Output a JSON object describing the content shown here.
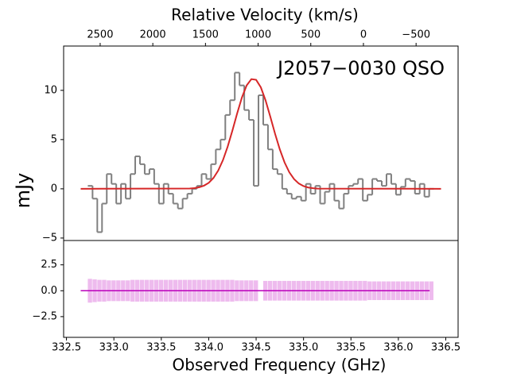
{
  "chart_data": [
    {
      "type": "step",
      "annotation": "J2057−0030 QSO",
      "ylabel": "mJy",
      "x2label": "Relative Velocity (km/s)",
      "xlim": [
        332.47,
        336.63
      ],
      "ylim": [
        -5.25,
        14.5
      ],
      "yticks": [
        {
          "value": -5,
          "label": "−5"
        },
        0,
        5,
        10
      ],
      "x2lim": [
        2847,
        -899
      ],
      "x2ticks": [
        2500,
        2000,
        1500,
        1000,
        500,
        0,
        {
          "value": -500,
          "label": "−500"
        }
      ],
      "series": [
        {
          "name": "spectrum",
          "color": "#808080",
          "x": [
            332.75,
            332.8,
            332.85,
            332.9,
            332.95,
            333.0,
            333.05,
            333.1,
            333.15,
            333.2,
            333.25,
            333.3,
            333.35,
            333.4,
            333.45,
            333.5,
            333.55,
            333.6,
            333.65,
            333.7,
            333.75,
            333.8,
            333.85,
            333.9,
            333.95,
            334.0,
            334.05,
            334.1,
            334.15,
            334.2,
            334.25,
            334.3,
            334.35,
            334.4,
            334.45,
            334.5,
            334.55,
            334.6,
            334.65,
            334.7,
            334.75,
            334.8,
            334.85,
            334.9,
            334.95,
            335.0,
            335.05,
            335.1,
            335.15,
            335.2,
            335.25,
            335.3,
            335.35,
            335.4,
            335.45,
            335.5,
            335.55,
            335.6,
            335.65,
            335.7,
            335.75,
            335.8,
            335.85,
            335.9,
            335.95,
            336.0,
            336.05,
            336.1,
            336.15,
            336.2,
            336.25,
            336.3,
            336.35
          ],
          "values": [
            0.3,
            -1,
            -4.4,
            -1.5,
            1.5,
            0.5,
            -1.5,
            0.5,
            -1,
            1.5,
            3.3,
            2.5,
            1.5,
            2,
            0.5,
            -1.5,
            0.5,
            -0.5,
            -1.5,
            -2,
            -1,
            -0.5,
            0,
            0.3,
            1.5,
            1,
            2.5,
            4,
            5,
            7.5,
            9,
            11.8,
            10.5,
            8,
            7,
            0.3,
            9.5,
            6.5,
            4,
            2,
            1.5,
            0,
            -0.5,
            -1,
            -0.8,
            -1.2,
            0.5,
            -0.5,
            0.3,
            -1.5,
            -0.3,
            0.5,
            -1.2,
            -2,
            -0.5,
            0.3,
            0.5,
            1,
            -1.2,
            -0.6,
            1,
            0.8,
            0.3,
            1.5,
            0.5,
            -0.6,
            0.2,
            1,
            0.8,
            -0.5,
            0.5,
            -0.8,
            0
          ]
        },
        {
          "name": "fit",
          "color": "#d62728",
          "x": [
            332.65,
            333.8,
            333.85,
            333.9,
            333.95,
            334.0,
            334.05,
            334.1,
            334.15,
            334.2,
            334.25,
            334.3,
            334.35,
            334.4,
            334.45,
            334.5,
            334.55,
            334.6,
            334.65,
            334.7,
            334.75,
            334.8,
            334.85,
            334.9,
            334.95,
            335.0,
            335.05,
            335.1,
            335.15,
            336.45
          ],
          "values": [
            0,
            0.03,
            0.07,
            0.16,
            0.32,
            0.61,
            1.1,
            1.85,
            2.91,
            4.29,
            5.92,
            7.66,
            9.27,
            10.5,
            11.14,
            11.07,
            10.3,
            8.97,
            7.31,
            5.58,
            4.0,
            2.68,
            1.68,
            0.99,
            0.54,
            0.28,
            0.13,
            0.06,
            0.02,
            0
          ]
        }
      ]
    },
    {
      "type": "band",
      "xlabel": "Observed Frequency (GHz)",
      "xlim": [
        332.47,
        336.63
      ],
      "ylim": [
        -4.5,
        4.85
      ],
      "yticks": [
        {
          "value": -2.5,
          "label": "−2.5"
        },
        {
          "value": 0,
          "label": "0.0"
        },
        2.5
      ],
      "xticks": [
        332.5,
        {
          "value": 333,
          "label": "333.0"
        },
        333.5,
        {
          "value": 334,
          "label": "334.0"
        },
        334.5,
        {
          "value": 335,
          "label": "335.0"
        },
        335.5,
        {
          "value": 336,
          "label": "336.0"
        },
        336.5
      ],
      "band_color": "#eebbee",
      "line_color": "#bb00bb",
      "x": [
        332.75,
        332.8,
        332.85,
        332.9,
        332.95,
        333.0,
        333.05,
        333.1,
        333.15,
        333.2,
        333.25,
        333.3,
        333.35,
        333.4,
        333.45,
        333.5,
        333.55,
        333.6,
        333.65,
        333.7,
        333.75,
        333.8,
        333.85,
        333.9,
        333.95,
        334.0,
        334.05,
        334.1,
        334.15,
        334.2,
        334.25,
        334.3,
        334.35,
        334.4,
        334.45,
        334.5,
        334.55,
        334.6,
        334.65,
        334.7,
        334.75,
        334.8,
        334.85,
        334.9,
        334.95,
        335.0,
        335.05,
        335.1,
        335.15,
        335.2,
        335.25,
        335.3,
        335.35,
        335.4,
        335.45,
        335.5,
        335.55,
        335.6,
        335.65,
        335.7,
        335.75,
        335.8,
        335.85,
        335.9,
        335.95,
        336.0,
        336.05,
        336.1,
        336.15,
        336.2,
        336.25,
        336.3,
        336.35
      ],
      "errors": [
        1.15,
        1.1,
        1.05,
        1.05,
        1.0,
        1.0,
        1.0,
        1.0,
        1.0,
        1.05,
        1.05,
        1.05,
        1.05,
        1.05,
        1.05,
        1.05,
        1.05,
        1.05,
        1.05,
        1.05,
        1.05,
        1.05,
        1.05,
        1.05,
        1.05,
        1.05,
        1.05,
        1.05,
        1.05,
        1.05,
        1.05,
        1.0,
        1.0,
        1.0,
        1.0,
        1.0,
        null,
        0.95,
        0.95,
        0.95,
        0.95,
        0.95,
        0.95,
        0.95,
        0.95,
        0.95,
        0.95,
        0.95,
        0.95,
        0.95,
        0.95,
        0.95,
        0.95,
        0.95,
        0.95,
        0.95,
        0.95,
        0.95,
        0.95,
        0.9,
        0.9,
        0.9,
        0.9,
        0.9,
        0.9,
        0.9,
        0.9,
        0.9,
        0.9,
        0.9,
        0.9,
        0.9,
        0.9
      ],
      "line_x": [
        332.65,
        336.33
      ],
      "line_values": [
        0,
        0
      ]
    }
  ]
}
